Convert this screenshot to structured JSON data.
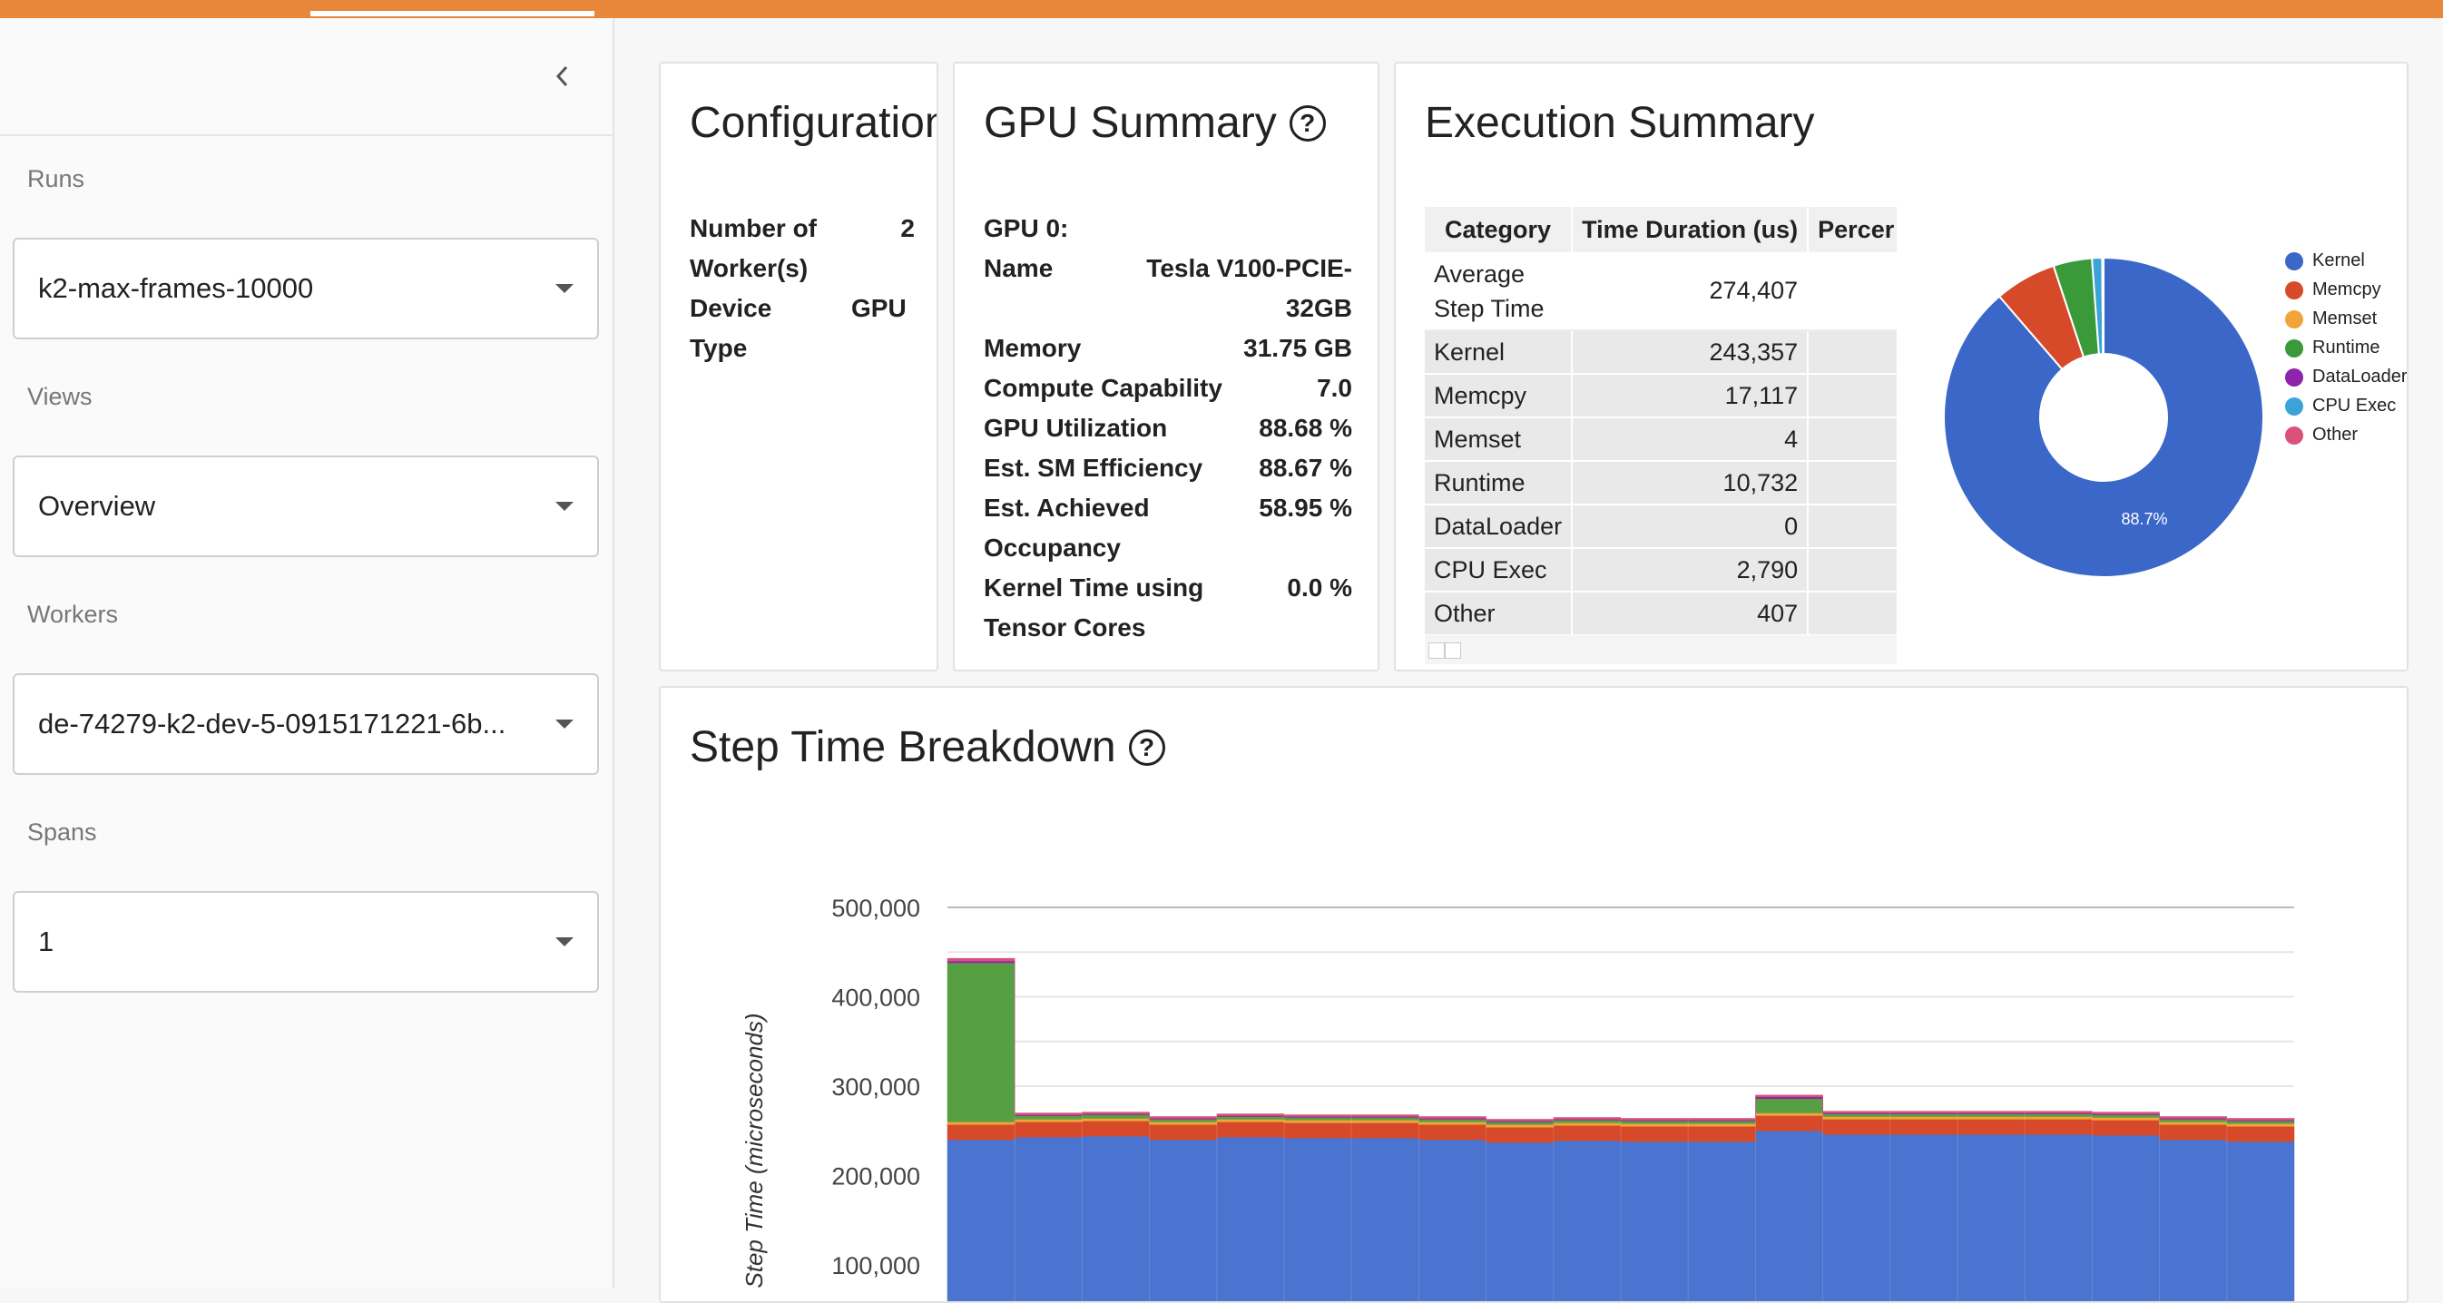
{
  "sidebar": {
    "collapse_icon": "chevron-left-icon",
    "runs": {
      "label": "Runs",
      "value": "k2-max-frames-10000"
    },
    "views": {
      "label": "Views",
      "value": "Overview"
    },
    "workers": {
      "label": "Workers",
      "value": "de-74279-k2-dev-5-0915171221-6b..."
    },
    "spans": {
      "label": "Spans",
      "value": "1"
    }
  },
  "configuration": {
    "title": "Configuration",
    "rows": [
      {
        "key1": "Number of",
        "key2": "Worker(s)",
        "value": "2"
      },
      {
        "key1": "Device",
        "key2": "Type",
        "value": "GPU"
      }
    ]
  },
  "gpu_summary": {
    "title": "GPU Summary",
    "gpu_label": "GPU 0:",
    "name_key": "Name",
    "name_value1": "Tesla V100-PCIE-",
    "name_value2": "32GB",
    "memory_key": "Memory",
    "memory_value": "31.75 GB",
    "cc_key": "Compute Capability",
    "cc_value": "7.0",
    "util_key": "GPU Utilization",
    "util_value": "88.68 %",
    "sm_key": "Est. SM Efficiency",
    "sm_value": "88.67 %",
    "occ_key1": "Est. Achieved",
    "occ_key2": "Occupancy",
    "occ_value": "58.95 %",
    "tc_key1": "Kernel Time using",
    "tc_key2": "Tensor Cores",
    "tc_value": "0.0 %"
  },
  "execution_summary": {
    "title": "Execution Summary",
    "headers": [
      "Category",
      "Time Duration (us)",
      "Percer"
    ],
    "rows": [
      {
        "cat1": "Average",
        "cat2": "Step Time",
        "value": "274,407"
      },
      {
        "cat1": "Kernel",
        "value": "243,357"
      },
      {
        "cat1": "Memcpy",
        "value": "17,117"
      },
      {
        "cat1": "Memset",
        "value": "4"
      },
      {
        "cat1": "Runtime",
        "value": "10,732"
      },
      {
        "cat1": "DataLoader",
        "value": "0"
      },
      {
        "cat1": "CPU Exec",
        "value": "2,790"
      },
      {
        "cat1": "Other",
        "value": "407"
      }
    ],
    "pie_label": "88.7%",
    "legend": [
      {
        "name": "Kernel",
        "color": "#3b67c9"
      },
      {
        "name": "Memcpy",
        "color": "#d64a2a"
      },
      {
        "name": "Memset",
        "color": "#f2a33a"
      },
      {
        "name": "Runtime",
        "color": "#3a9a3a"
      },
      {
        "name": "DataLoader",
        "color": "#8e24aa"
      },
      {
        "name": "CPU Exec",
        "color": "#3ba3d8"
      },
      {
        "name": "Other",
        "color": "#d9527a"
      }
    ]
  },
  "step_breakdown": {
    "title": "Step Time Breakdown"
  },
  "chart_data": [
    {
      "type": "pie",
      "categories": [
        "Kernel",
        "Memcpy",
        "Memset",
        "Runtime",
        "DataLoader",
        "CPU Exec",
        "Other"
      ],
      "values": [
        243357,
        17117,
        4,
        10732,
        0,
        2790,
        407
      ],
      "slice_label": "88.7%",
      "legend_position": "right",
      "colors": [
        "#3b67c9",
        "#d64a2a",
        "#f2a33a",
        "#3a9a3a",
        "#8e24aa",
        "#3ba3d8",
        "#d9527a"
      ]
    },
    {
      "type": "area",
      "title": "Step Time Breakdown",
      "ylabel": "Step Time (microseconds)",
      "ylim": [
        0,
        500000
      ],
      "yticks": [
        "100,000",
        "200,000",
        "300,000",
        "400,000",
        "500,000"
      ],
      "ytick_values": [
        100000,
        200000,
        300000,
        400000,
        500000
      ],
      "grid": true,
      "steps": 20,
      "series": [
        {
          "name": "Kernel",
          "color": "#4a74cf",
          "values": [
            240000,
            243000,
            244000,
            240000,
            243000,
            242000,
            242000,
            240000,
            237000,
            239000,
            238000,
            238000,
            250000,
            246000,
            246000,
            246000,
            246000,
            245000,
            240000,
            238000
          ]
        },
        {
          "name": "Memcpy",
          "color": "#d64a2a",
          "values": [
            17000,
            17000,
            17000,
            17000,
            17000,
            17000,
            17000,
            17000,
            17000,
            17000,
            17000,
            17000,
            17000,
            17000,
            17000,
            17000,
            17000,
            17000,
            17000,
            17000
          ]
        },
        {
          "name": "Memset",
          "color": "#f2a33a",
          "values": [
            3000,
            3000,
            3000,
            3000,
            3000,
            3000,
            3000,
            3000,
            3000,
            3000,
            3000,
            3000,
            3000,
            3000,
            3000,
            3000,
            3000,
            3000,
            3000,
            3000
          ]
        },
        {
          "name": "Runtime",
          "color": "#56a043",
          "values": [
            178000,
            4000,
            4000,
            3000,
            3000,
            3000,
            3000,
            3000,
            3000,
            3000,
            3000,
            3000,
            16000,
            3000,
            3000,
            3000,
            3000,
            3000,
            3000,
            3000
          ]
        },
        {
          "name": "DataLoader",
          "color": "#8e24aa",
          "values": [
            2000,
            1000,
            1000,
            1000,
            1000,
            1000,
            1000,
            1000,
            1000,
            1000,
            1000,
            1000,
            2000,
            1000,
            1000,
            1000,
            1000,
            1000,
            1000,
            1000
          ]
        },
        {
          "name": "CPU Exec",
          "color": "#d9527a",
          "values": [
            3000,
            2000,
            2000,
            2000,
            2000,
            2000,
            2000,
            2000,
            2000,
            2000,
            2000,
            2000,
            2000,
            2000,
            2000,
            2000,
            2000,
            2000,
            2000,
            2000
          ]
        }
      ]
    }
  ]
}
